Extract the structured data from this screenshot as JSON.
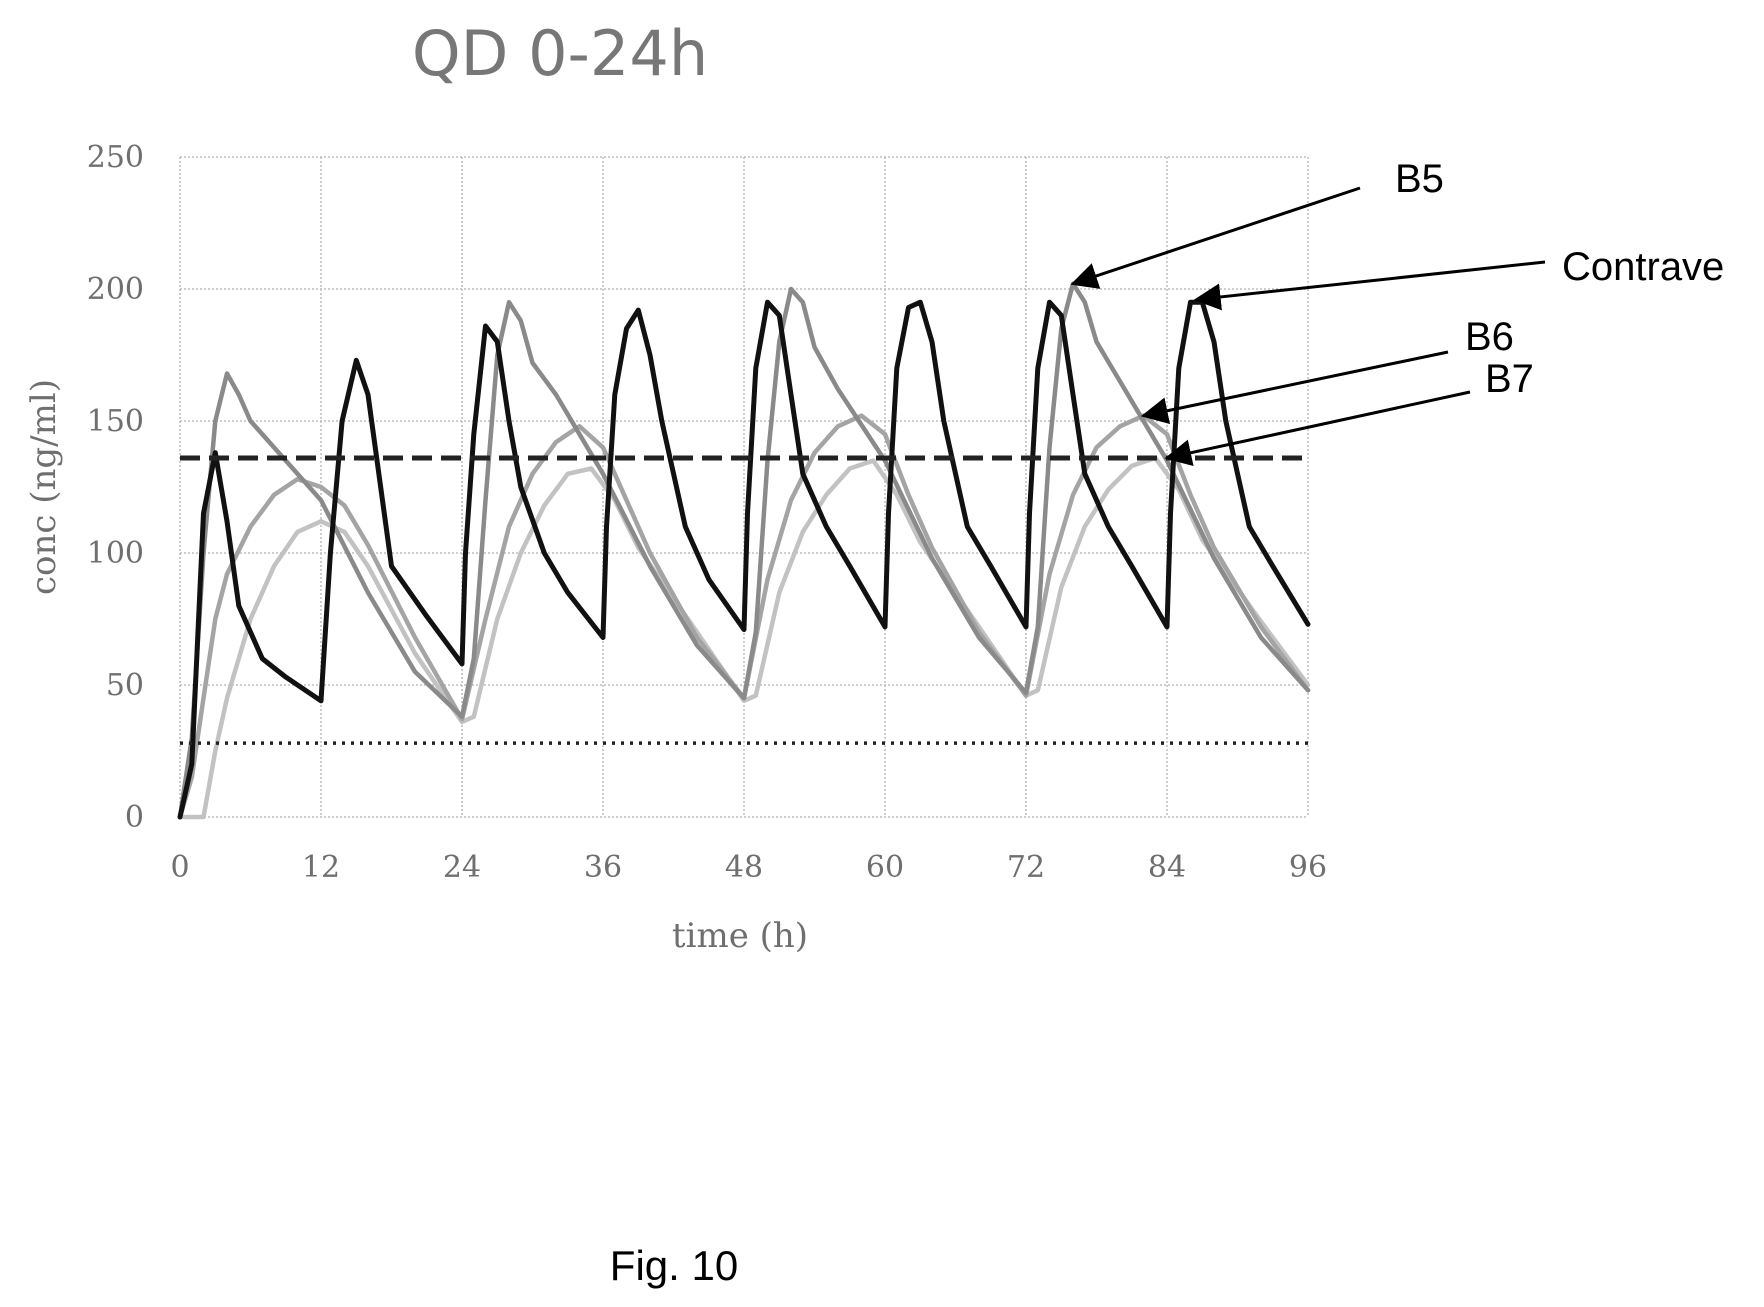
{
  "figure_caption": "Fig. 10",
  "colors": {
    "contrave": "#111111",
    "b5": "#8a8a8a",
    "b6": "#a4a4a4",
    "b7": "#c2c2c2",
    "reference": "#222222",
    "grid": "#bdbdbd",
    "text": "#6f6f6f"
  },
  "chart_data": {
    "type": "line",
    "title": "QD 0-24h",
    "xlabel": "time (h)",
    "ylabel": "conc (ng/ml)",
    "xlim": [
      0,
      96
    ],
    "ylim": [
      0,
      250
    ],
    "xticks": [
      0,
      12,
      24,
      36,
      48,
      60,
      72,
      84,
      96
    ],
    "yticks": [
      0,
      50,
      100,
      150,
      200,
      250
    ],
    "grid": true,
    "series": [
      {
        "name": "Contrave",
        "style": "solid",
        "x": [
          0,
          1,
          2,
          3,
          4,
          5,
          7,
          9,
          12,
          12.8,
          13.8,
          15,
          16,
          18,
          21,
          24,
          24.3,
          25,
          26,
          27,
          28,
          29,
          31,
          33,
          36,
          36.3,
          37,
          38,
          39,
          40,
          41,
          43,
          45,
          48,
          48.3,
          49,
          50,
          51,
          52,
          53,
          55,
          57,
          60,
          60.3,
          61,
          62,
          63,
          64,
          65,
          67,
          69,
          72,
          72.3,
          73,
          74,
          75,
          76,
          77,
          79,
          81,
          84,
          84.3,
          85,
          86,
          87,
          88,
          89,
          91,
          93,
          96
        ],
        "y": [
          0,
          20,
          115,
          138,
          112,
          80,
          60,
          53,
          44,
          100,
          150,
          173,
          160,
          95,
          76,
          58,
          100,
          145,
          186,
          180,
          150,
          125,
          100,
          85,
          68,
          110,
          160,
          185,
          192,
          175,
          150,
          110,
          90,
          71,
          115,
          170,
          195,
          190,
          160,
          130,
          110,
          95,
          72,
          115,
          170,
          193,
          195,
          180,
          150,
          110,
          95,
          72,
          115,
          170,
          195,
          190,
          160,
          130,
          110,
          95,
          72,
          115,
          170,
          195,
          195,
          180,
          150,
          110,
          95,
          73
        ]
      },
      {
        "name": "B5",
        "style": "solid",
        "x": [
          0,
          1,
          2,
          3,
          4,
          5,
          6,
          8,
          12,
          16,
          20,
          24,
          25,
          26,
          27,
          28,
          29,
          30,
          32,
          36,
          40,
          44,
          48,
          49,
          50,
          51,
          52,
          53,
          54,
          56,
          60,
          64,
          68,
          72,
          73,
          74,
          75,
          76,
          77,
          78,
          80,
          84,
          88,
          92,
          96
        ],
        "y": [
          0,
          30,
          100,
          150,
          168,
          160,
          150,
          140,
          120,
          85,
          55,
          38,
          60,
          120,
          175,
          195,
          188,
          172,
          160,
          130,
          95,
          65,
          45,
          70,
          135,
          180,
          200,
          195,
          178,
          162,
          135,
          98,
          68,
          47,
          72,
          140,
          185,
          202,
          195,
          180,
          165,
          135,
          98,
          68,
          48
        ]
      },
      {
        "name": "B6",
        "style": "solid",
        "x": [
          0,
          1,
          2,
          3,
          4,
          6,
          8,
          10,
          12,
          14,
          16,
          20,
          24,
          26,
          28,
          30,
          32,
          34,
          36,
          38,
          40,
          44,
          48,
          50,
          52,
          54,
          56,
          58,
          60,
          62,
          64,
          68,
          72,
          74,
          76,
          78,
          80,
          82,
          84,
          86,
          88,
          92,
          96
        ],
        "y": [
          0,
          15,
          45,
          75,
          92,
          110,
          122,
          128,
          125,
          118,
          103,
          68,
          37,
          75,
          110,
          130,
          142,
          148,
          140,
          120,
          100,
          68,
          45,
          90,
          120,
          138,
          148,
          152,
          145,
          122,
          102,
          70,
          46,
          92,
          122,
          140,
          148,
          152,
          145,
          122,
          102,
          72,
          48
        ]
      },
      {
        "name": "B7",
        "style": "solid",
        "x": [
          0,
          2,
          3,
          4,
          6,
          8,
          10,
          12,
          14,
          16,
          20,
          24,
          25,
          27,
          29,
          31,
          33,
          35,
          37,
          39,
          44,
          48,
          49,
          51,
          53,
          55,
          57,
          59,
          61,
          63,
          68,
          72,
          73,
          75,
          77,
          79,
          81,
          83,
          85,
          87,
          92,
          96
        ],
        "y": [
          0,
          0,
          25,
          45,
          75,
          95,
          108,
          112,
          108,
          95,
          62,
          36,
          38,
          75,
          100,
          118,
          130,
          132,
          120,
          102,
          70,
          44,
          46,
          85,
          108,
          122,
          132,
          135,
          122,
          104,
          72,
          46,
          48,
          87,
          110,
          124,
          133,
          136,
          124,
          105,
          74,
          50
        ]
      },
      {
        "name": "",
        "style": "dashed",
        "x": [
          0,
          96
        ],
        "y": [
          136,
          136
        ]
      },
      {
        "name": "",
        "style": "dotted",
        "x": [
          0,
          96
        ],
        "y": [
          28,
          28
        ]
      }
    ],
    "annotations": [
      {
        "text": "B5",
        "target": {
          "x": 76,
          "y": 202
        }
      },
      {
        "text": "Contrave",
        "target": {
          "x": 86.5,
          "y": 196
        }
      },
      {
        "text": "B6",
        "target": {
          "x": 82,
          "y": 152
        }
      },
      {
        "text": "B7",
        "target": {
          "x": 84,
          "y": 136
        }
      }
    ]
  }
}
